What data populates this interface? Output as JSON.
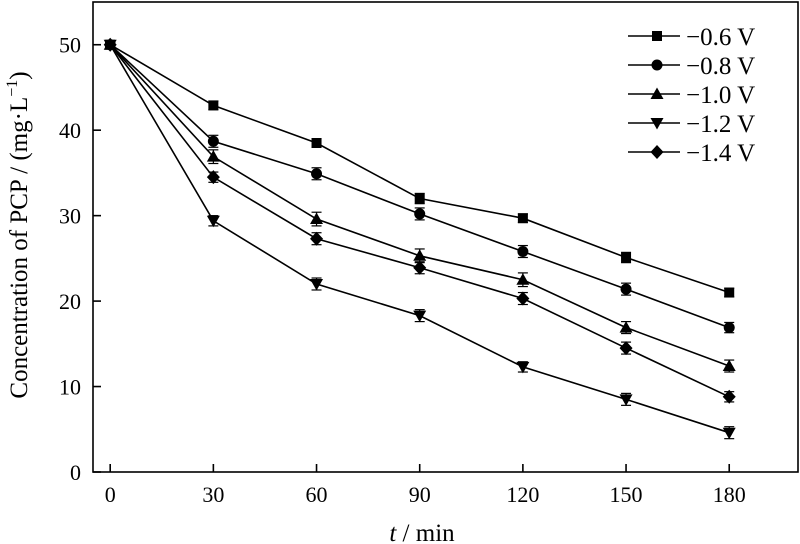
{
  "chart_data": {
    "type": "line",
    "title": "",
    "xlabel_var": "t",
    "xlabel_unit": " / min",
    "ylabel": "Concentration of PCP / (mg·L",
    "ylabel_sup": "−1",
    "ylabel_end": ")",
    "xlim": [
      -5,
      200
    ],
    "ylim": [
      0,
      55
    ],
    "xticks": [
      0,
      30,
      60,
      90,
      120,
      150,
      180
    ],
    "yticks": [
      0,
      10,
      20,
      30,
      40,
      50
    ],
    "x": [
      0,
      30,
      60,
      90,
      120,
      150,
      180
    ],
    "legend_position": "top-right",
    "grid": false,
    "series": [
      {
        "name": "−0.6 V",
        "marker": "square",
        "values": [
          50,
          42.9,
          38.5,
          32.0,
          29.7,
          25.1,
          21.0
        ],
        "errors": [
          0.3,
          0.5,
          0.5,
          0.6,
          0.5,
          0.6,
          0.5
        ]
      },
      {
        "name": "−0.8 V",
        "marker": "circle",
        "values": [
          50,
          38.7,
          34.9,
          30.2,
          25.8,
          21.4,
          16.9
        ],
        "errors": [
          0.3,
          0.7,
          0.7,
          0.7,
          0.7,
          0.7,
          0.6
        ]
      },
      {
        "name": "−1.0 V",
        "marker": "triangle-up",
        "values": [
          50,
          36.9,
          29.6,
          25.3,
          22.5,
          16.9,
          12.4
        ],
        "errors": [
          0.3,
          0.8,
          0.8,
          0.8,
          0.8,
          0.7,
          0.7
        ]
      },
      {
        "name": "−1.2 V",
        "marker": "triangle-down",
        "values": [
          50,
          29.4,
          22.0,
          18.3,
          12.3,
          8.5,
          4.6
        ],
        "errors": [
          0.3,
          0.6,
          0.7,
          0.7,
          0.6,
          0.7,
          0.7
        ]
      },
      {
        "name": "−1.4 V",
        "marker": "diamond",
        "values": [
          50,
          34.5,
          27.3,
          23.9,
          20.3,
          14.5,
          8.8
        ],
        "errors": [
          0.3,
          0.6,
          0.7,
          0.7,
          0.7,
          0.7,
          0.6
        ]
      }
    ]
  }
}
